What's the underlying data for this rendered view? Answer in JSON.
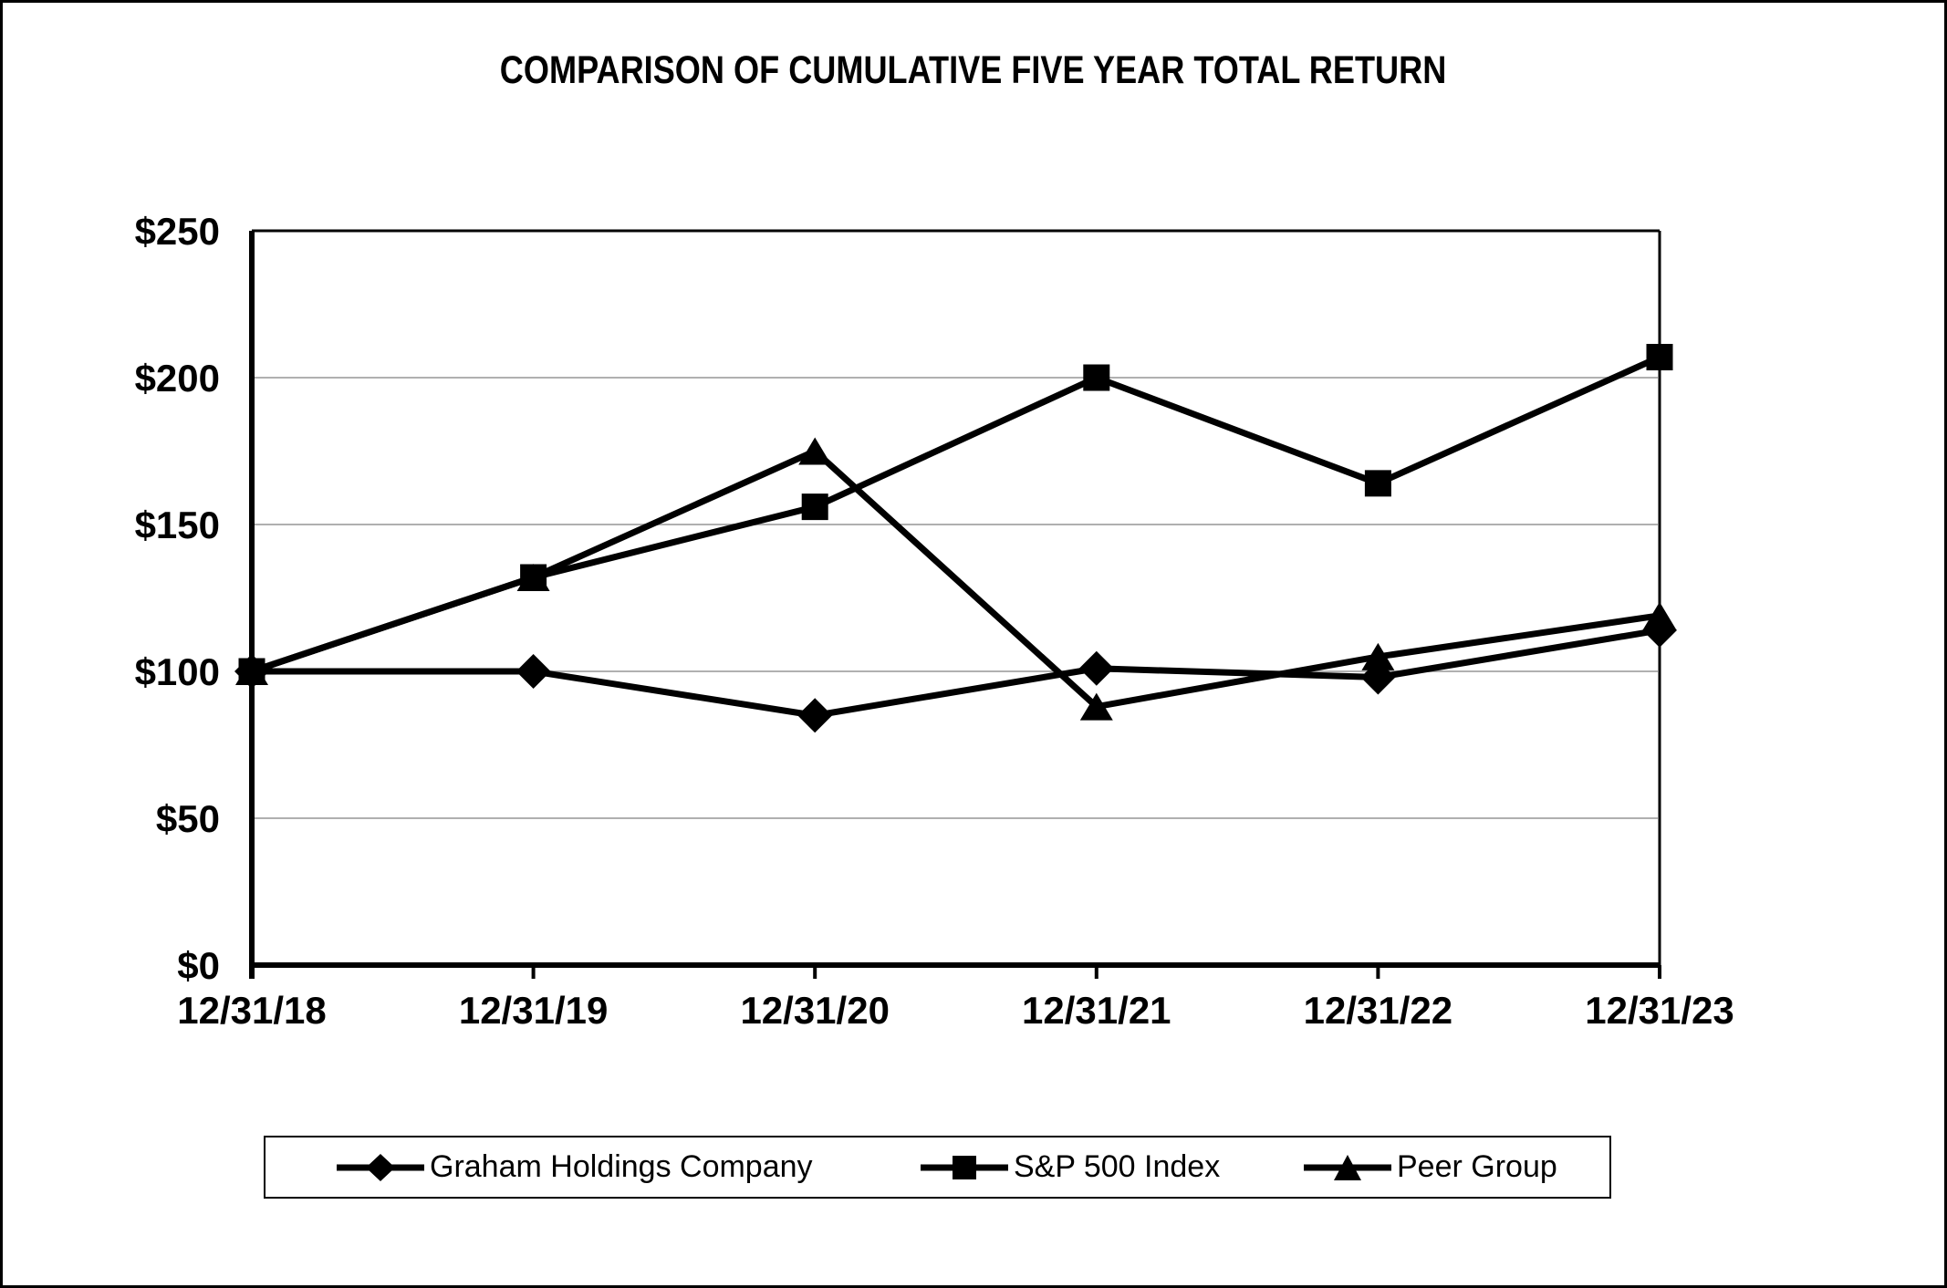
{
  "chart_data": {
    "type": "line",
    "title": "COMPARISON OF CUMULATIVE FIVE YEAR TOTAL RETURN",
    "categories": [
      "12/31/18",
      "12/31/19",
      "12/31/20",
      "12/31/21",
      "12/31/22",
      "12/31/23"
    ],
    "series": [
      {
        "name": "Graham Holdings Company",
        "marker": "diamond",
        "values": [
          100,
          100,
          85,
          101,
          98,
          114
        ]
      },
      {
        "name": "S&P 500 Index",
        "marker": "square",
        "values": [
          100,
          132,
          156,
          200,
          164,
          207
        ]
      },
      {
        "name": "Peer Group",
        "marker": "triangle",
        "values": [
          100,
          132,
          175,
          88,
          105,
          119
        ]
      }
    ],
    "y_ticks": [
      {
        "label": "$0",
        "value": 0
      },
      {
        "label": "$50",
        "value": 50
      },
      {
        "label": "$100",
        "value": 100
      },
      {
        "label": "$150",
        "value": 150
      },
      {
        "label": "$200",
        "value": 200
      },
      {
        "label": "$250",
        "value": 250
      }
    ],
    "ylim": [
      0,
      250
    ],
    "grid": "horizontal gridlines every $50, on",
    "legend_position": "bottom",
    "series_color": "#000000",
    "gridline_color": "#b0b0b0",
    "axis_color": "#000000",
    "background_color": "#ffffff"
  }
}
